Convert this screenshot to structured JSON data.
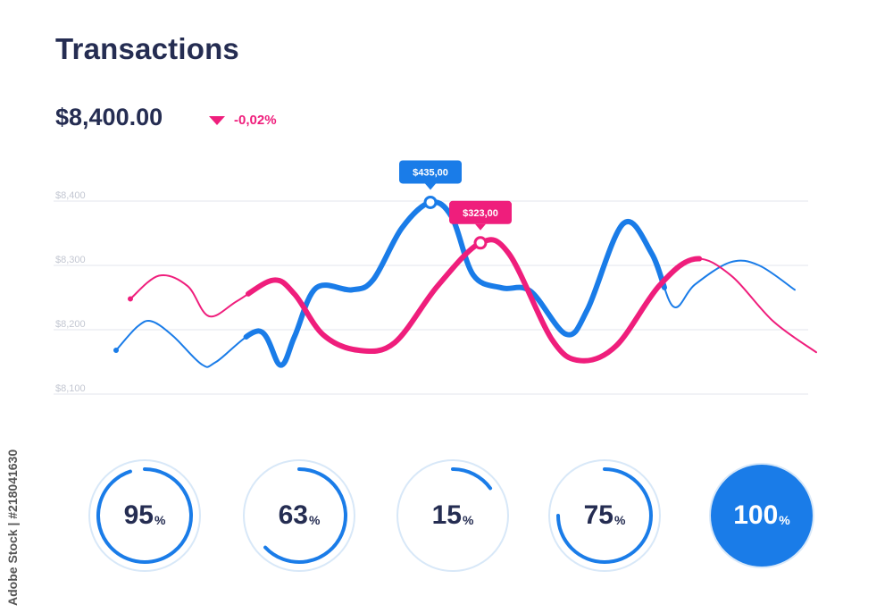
{
  "header": {
    "title": "Transactions",
    "amount": "$8,400.00",
    "change": "-0,02%"
  },
  "colors": {
    "blue": "#1a7ce8",
    "pink": "#ef1e7c",
    "text": "#252d52",
    "grid": "#e3e6ee",
    "axis_text": "#c3c7d2",
    "ring_bg": "#d8e8f8"
  },
  "chart_data": {
    "type": "line",
    "title": "Transactions",
    "xlabel": "",
    "ylabel": "",
    "yticks": [
      "$8,400",
      "$8,300",
      "$8,200",
      "$8,100"
    ],
    "ytick_values": [
      8400,
      8300,
      8200,
      8100
    ],
    "ylim": [
      8100,
      8400
    ],
    "xlim": [
      0,
      100
    ],
    "series": [
      {
        "name": "blue",
        "color": "#1a7ce8",
        "points": [
          [
            0,
            8168
          ],
          [
            3,
            8205
          ],
          [
            5,
            8213
          ],
          [
            8,
            8190
          ],
          [
            12,
            8146
          ],
          [
            14,
            8150
          ],
          [
            20,
            8198
          ],
          [
            23,
            8145
          ],
          [
            25,
            8190
          ],
          [
            28,
            8265
          ],
          [
            33,
            8262
          ],
          [
            36,
            8278
          ],
          [
            40,
            8358
          ],
          [
            44,
            8398
          ],
          [
            47,
            8375
          ],
          [
            50,
            8285
          ],
          [
            54,
            8265
          ],
          [
            58,
            8260
          ],
          [
            63,
            8193
          ],
          [
            66,
            8232
          ],
          [
            71,
            8365
          ],
          [
            75,
            8318
          ],
          [
            78,
            8236
          ],
          [
            81,
            8270
          ],
          [
            86,
            8305
          ],
          [
            90,
            8300
          ],
          [
            95,
            8262
          ]
        ]
      },
      {
        "name": "pink",
        "color": "#ef1e7c",
        "points": [
          [
            2,
            8248
          ],
          [
            6,
            8284
          ],
          [
            10,
            8268
          ],
          [
            13,
            8221
          ],
          [
            17,
            8245
          ],
          [
            22,
            8277
          ],
          [
            25,
            8255
          ],
          [
            29,
            8192
          ],
          [
            34,
            8168
          ],
          [
            39,
            8180
          ],
          [
            45,
            8268
          ],
          [
            51,
            8335
          ],
          [
            55,
            8318
          ],
          [
            61,
            8185
          ],
          [
            65,
            8152
          ],
          [
            70,
            8175
          ],
          [
            76,
            8268
          ],
          [
            81,
            8310
          ],
          [
            86,
            8285
          ],
          [
            92,
            8213
          ],
          [
            98,
            8165
          ]
        ]
      }
    ],
    "annotations": [
      {
        "series": "blue",
        "label": "$435,00",
        "x": 44,
        "y": 8398
      },
      {
        "series": "pink",
        "label": "$323,00",
        "x": 51,
        "y": 8335
      }
    ]
  },
  "gauges": [
    {
      "value": 95,
      "num": "95",
      "unit": "%"
    },
    {
      "value": 63,
      "num": "63",
      "unit": "%"
    },
    {
      "value": 15,
      "num": "15",
      "unit": "%"
    },
    {
      "value": 75,
      "num": "75",
      "unit": "%"
    },
    {
      "value": 100,
      "num": "100",
      "unit": "%"
    }
  ],
  "credit": "Adobe Stock | #218041630"
}
